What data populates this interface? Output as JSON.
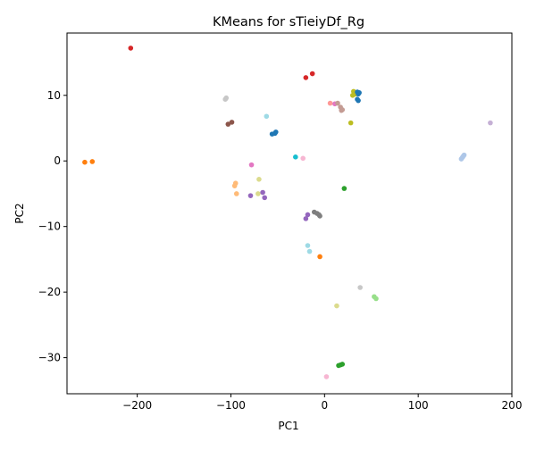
{
  "chart_data": {
    "type": "scatter",
    "title": "KMeans for sTieiyDf_Rg",
    "xlabel": "PC1",
    "ylabel": "PC2",
    "xlim": [
      -275,
      200
    ],
    "ylim": [
      -35.5,
      19.5
    ],
    "xticks": [
      -200,
      -100,
      0,
      100,
      200
    ],
    "xtick_labels": [
      "−200",
      "−100",
      "0",
      "100",
      "200"
    ],
    "yticks": [
      -30,
      -20,
      -10,
      0,
      10
    ],
    "ytick_labels": [
      "−30",
      "−20",
      "−10",
      "0",
      "10"
    ],
    "grid": false,
    "legend": "none",
    "points": [
      {
        "x": -207,
        "y": 17.2,
        "color": "#d62728"
      },
      {
        "x": -20,
        "y": 12.7,
        "color": "#d62728"
      },
      {
        "x": -13,
        "y": 13.3,
        "color": "#d62728"
      },
      {
        "x": 30,
        "y": 10.0,
        "color": "#bcbd22"
      },
      {
        "x": 31,
        "y": 10.6,
        "color": "#bcbd22"
      },
      {
        "x": 33,
        "y": 10.2,
        "color": "#bcbd22"
      },
      {
        "x": 35,
        "y": 10.5,
        "color": "#1f77b4"
      },
      {
        "x": 36,
        "y": 10.2,
        "color": "#1f77b4"
      },
      {
        "x": 37,
        "y": 10.4,
        "color": "#1f77b4"
      },
      {
        "x": 35,
        "y": 9.4,
        "color": "#1f77b4"
      },
      {
        "x": 36,
        "y": 9.2,
        "color": "#1f77b4"
      },
      {
        "x": 28,
        "y": 5.8,
        "color": "#bcbd22"
      },
      {
        "x": 6,
        "y": 8.8,
        "color": "#ff9896"
      },
      {
        "x": 11,
        "y": 8.7,
        "color": "#e377c2"
      },
      {
        "x": 14,
        "y": 8.8,
        "color": "#c49c94"
      },
      {
        "x": 17,
        "y": 8.2,
        "color": "#c49c94"
      },
      {
        "x": 18,
        "y": 7.7,
        "color": "#c49c94"
      },
      {
        "x": 19,
        "y": 7.8,
        "color": "#c49c94"
      },
      {
        "x": -106,
        "y": 9.4,
        "color": "#c7c7c7"
      },
      {
        "x": -105,
        "y": 9.6,
        "color": "#c7c7c7"
      },
      {
        "x": -103,
        "y": 5.6,
        "color": "#8c564b"
      },
      {
        "x": -99,
        "y": 5.9,
        "color": "#8c564b"
      },
      {
        "x": -62,
        "y": 6.8,
        "color": "#9edae5"
      },
      {
        "x": -56,
        "y": 4.1,
        "color": "#1f77b4"
      },
      {
        "x": -53,
        "y": 4.2,
        "color": "#1f77b4"
      },
      {
        "x": -52,
        "y": 4.4,
        "color": "#1f77b4"
      },
      {
        "x": 177,
        "y": 5.8,
        "color": "#c5b0d5"
      },
      {
        "x": 146,
        "y": 0.3,
        "color": "#aec7e8"
      },
      {
        "x": 147,
        "y": 0.5,
        "color": "#aec7e8"
      },
      {
        "x": 148,
        "y": 0.7,
        "color": "#aec7e8"
      },
      {
        "x": 149,
        "y": 0.9,
        "color": "#aec7e8"
      },
      {
        "x": -256,
        "y": -0.2,
        "color": "#ff7f0e"
      },
      {
        "x": -248,
        "y": -0.1,
        "color": "#ff7f0e"
      },
      {
        "x": -31,
        "y": 0.6,
        "color": "#17becf"
      },
      {
        "x": -23,
        "y": 0.4,
        "color": "#f7b6d2"
      },
      {
        "x": -78,
        "y": -0.6,
        "color": "#e377c2"
      },
      {
        "x": -95,
        "y": -3.4,
        "color": "#ffbb78"
      },
      {
        "x": -96,
        "y": -3.8,
        "color": "#ffbb78"
      },
      {
        "x": -94,
        "y": -5.0,
        "color": "#ffbb78"
      },
      {
        "x": -70,
        "y": -2.8,
        "color": "#dbdb8d"
      },
      {
        "x": -71,
        "y": -5.0,
        "color": "#dbdb8d"
      },
      {
        "x": -66,
        "y": -4.8,
        "color": "#9467bd"
      },
      {
        "x": -64,
        "y": -5.6,
        "color": "#9467bd"
      },
      {
        "x": -79,
        "y": -5.3,
        "color": "#9467bd"
      },
      {
        "x": 21,
        "y": -4.2,
        "color": "#2ca02c"
      },
      {
        "x": -20,
        "y": -8.8,
        "color": "#9467bd"
      },
      {
        "x": -18,
        "y": -8.2,
        "color": "#9467bd"
      },
      {
        "x": -11,
        "y": -7.8,
        "color": "#7f7f7f"
      },
      {
        "x": -8,
        "y": -8.0,
        "color": "#7f7f7f"
      },
      {
        "x": -6,
        "y": -8.2,
        "color": "#7f7f7f"
      },
      {
        "x": -5,
        "y": -8.4,
        "color": "#7f7f7f"
      },
      {
        "x": -18,
        "y": -12.9,
        "color": "#9edae5"
      },
      {
        "x": -16,
        "y": -13.8,
        "color": "#9edae5"
      },
      {
        "x": -5,
        "y": -14.6,
        "color": "#ff7f0e"
      },
      {
        "x": 38,
        "y": -19.3,
        "color": "#c7c7c7"
      },
      {
        "x": 53,
        "y": -20.7,
        "color": "#98df8a"
      },
      {
        "x": 55,
        "y": -21.0,
        "color": "#98df8a"
      },
      {
        "x": 13,
        "y": -22.1,
        "color": "#dbdb8d"
      },
      {
        "x": 15,
        "y": -31.2,
        "color": "#2ca02c"
      },
      {
        "x": 17,
        "y": -31.1,
        "color": "#2ca02c"
      },
      {
        "x": 19,
        "y": -31.0,
        "color": "#2ca02c"
      },
      {
        "x": 2,
        "y": -32.9,
        "color": "#f7b6d2"
      }
    ]
  }
}
